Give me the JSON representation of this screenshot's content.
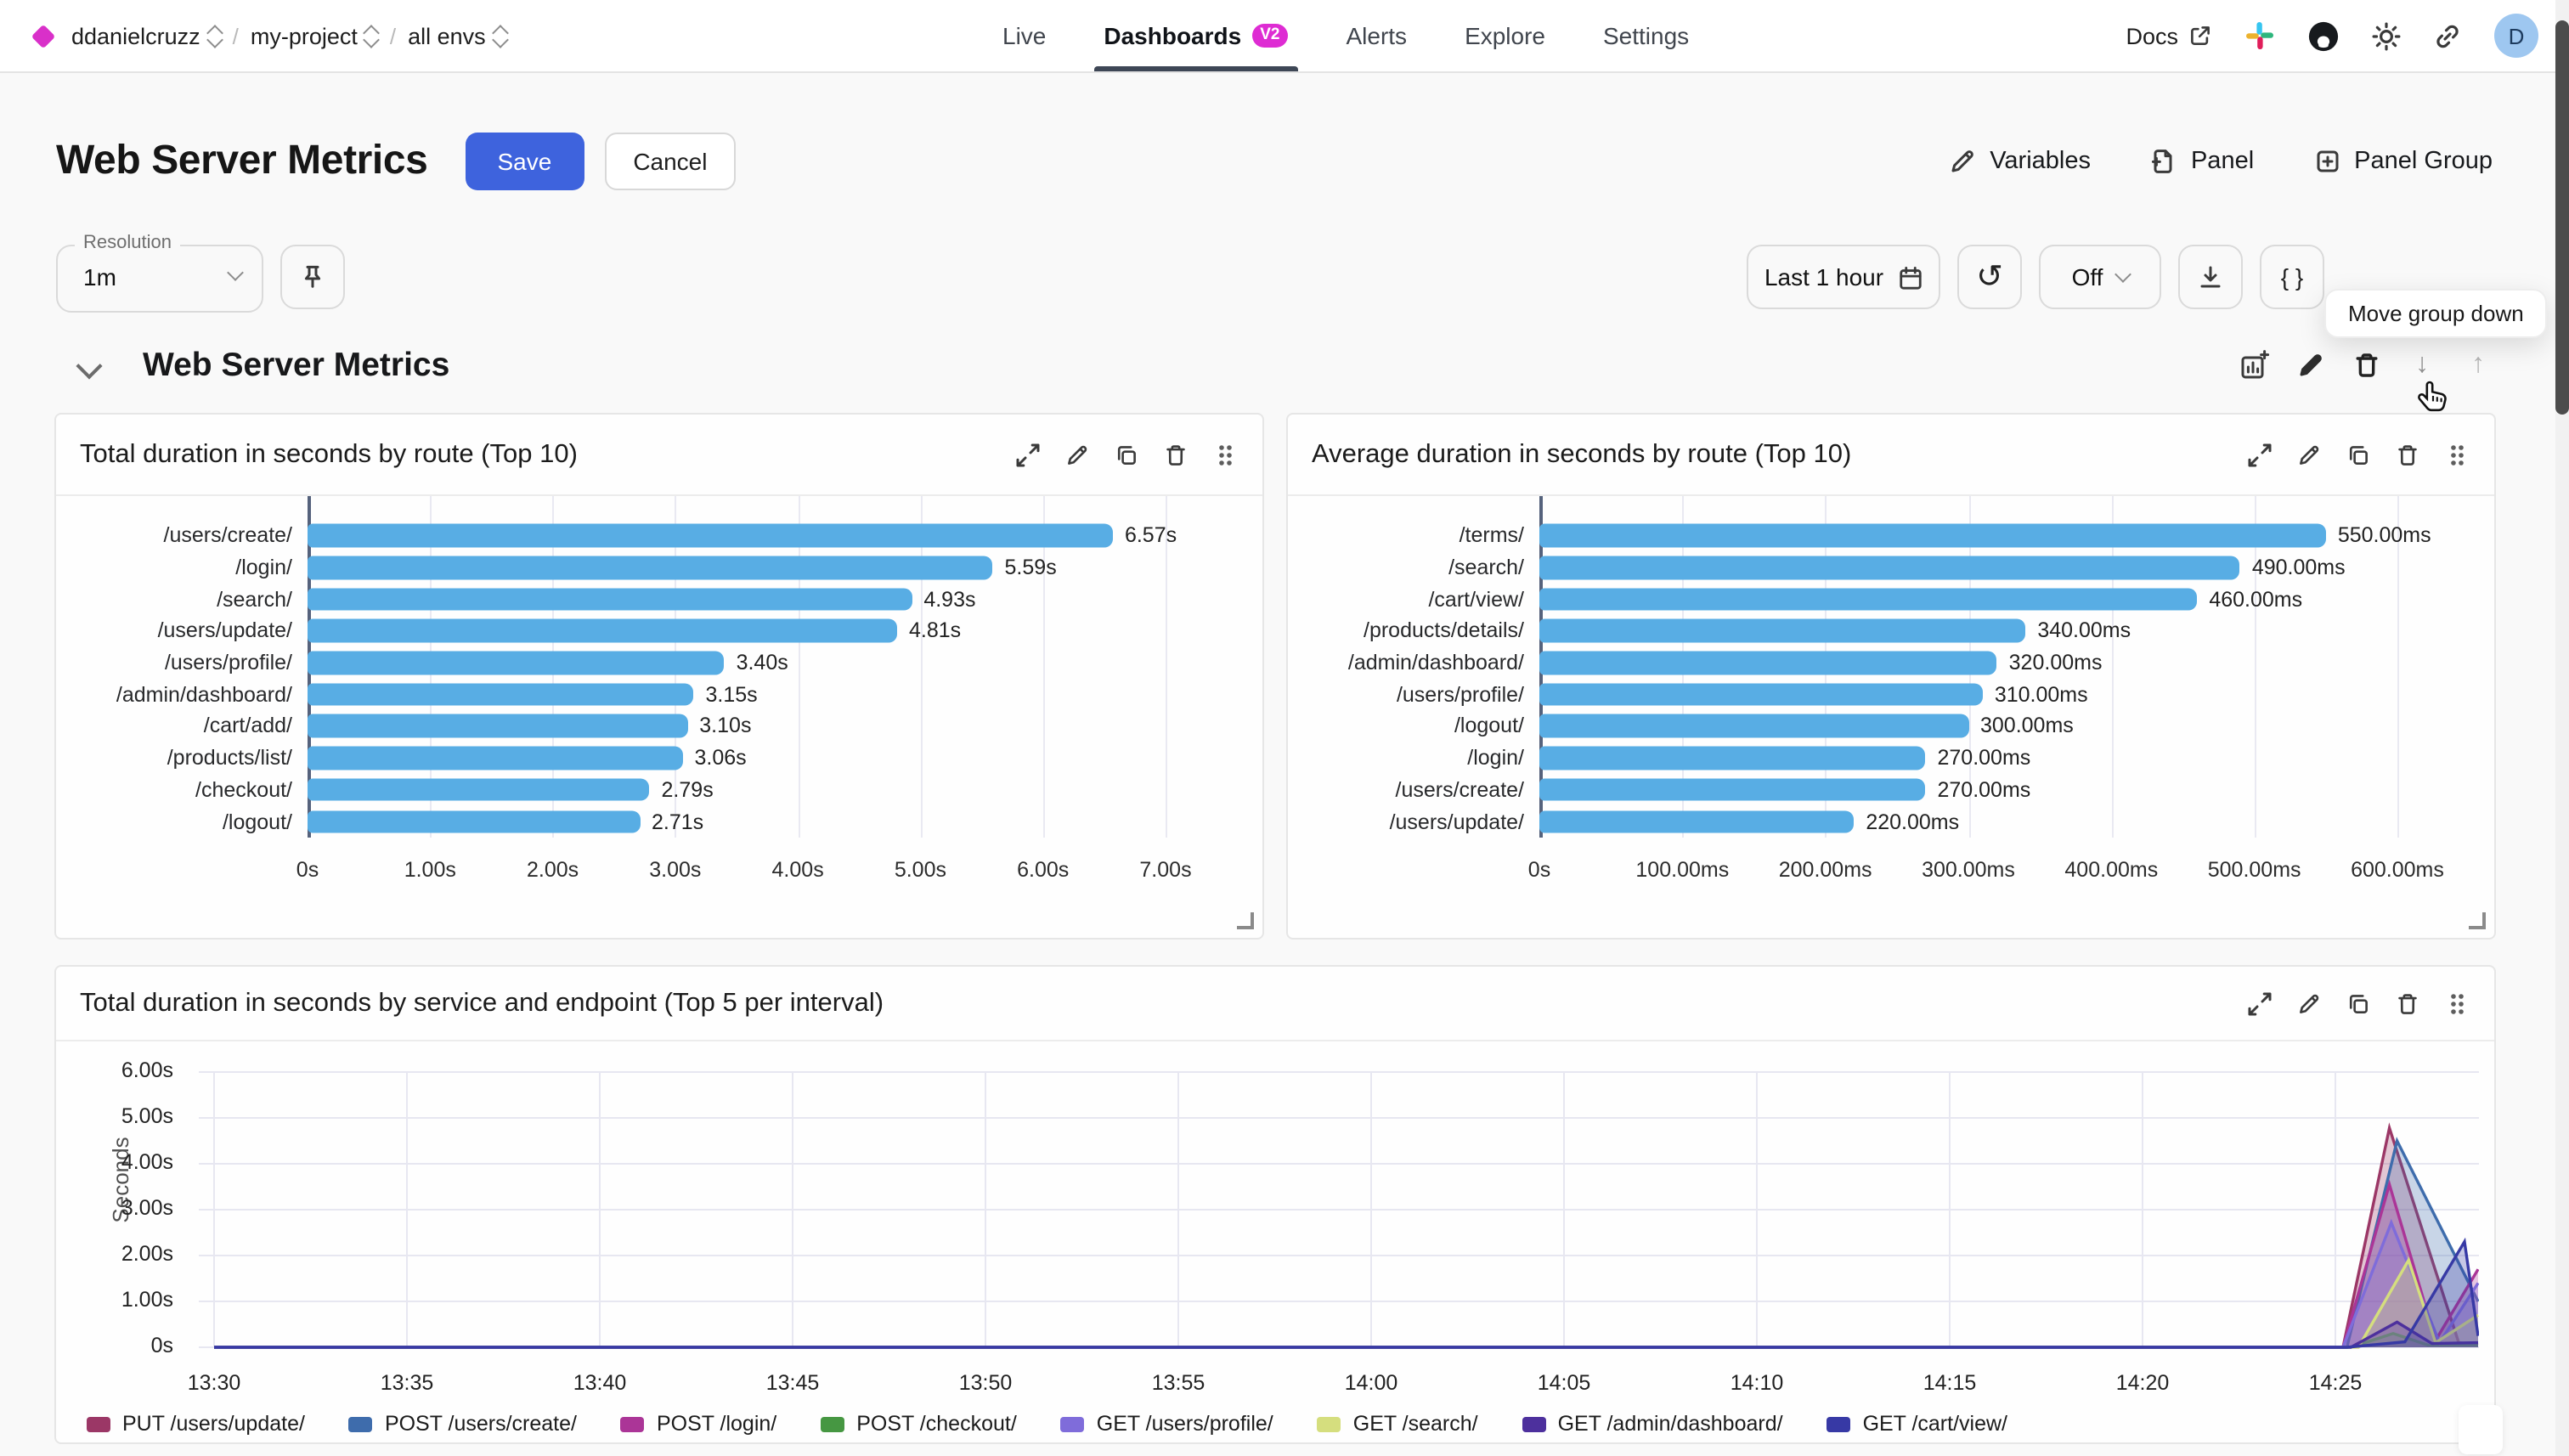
{
  "topnav": {
    "breadcrumb": {
      "org": "ddanielcruzz",
      "project": "my-project",
      "env": "all envs",
      "separator": "/"
    },
    "tabs": [
      {
        "label": "Live"
      },
      {
        "label": "Dashboards",
        "badge": "V2",
        "active": true
      },
      {
        "label": "Alerts"
      },
      {
        "label": "Explore"
      },
      {
        "label": "Settings"
      }
    ],
    "docs_label": "Docs",
    "icons": [
      "external-link-icon",
      "slack-icon",
      "github-icon",
      "sun-icon",
      "link-icon"
    ],
    "avatar_initial": "D"
  },
  "header": {
    "title": "Web Server Metrics",
    "save_label": "Save",
    "cancel_label": "Cancel",
    "variables_label": "Variables",
    "panel_label": "Panel",
    "panel_group_label": "Panel Group"
  },
  "controls": {
    "resolution_label": "Resolution",
    "resolution_value": "1m",
    "time_range_label": "Last 1 hour",
    "refresh_off_label": "Off",
    "braces_label": "{ }",
    "tooltip": "Move group down"
  },
  "group": {
    "title": "Web Server Metrics",
    "down_arrow": "↓",
    "up_arrow": "↑",
    "refresh_glyph": "↺"
  },
  "chart_data": [
    {
      "type": "bar",
      "orientation": "horizontal",
      "title": "Total duration in seconds by route (Top 10)",
      "categories": [
        "/users/create/",
        "/login/",
        "/search/",
        "/users/update/",
        "/users/profile/",
        "/admin/dashboard/",
        "/cart/add/",
        "/products/list/",
        "/checkout/",
        "/logout/"
      ],
      "values": [
        6.57,
        5.59,
        4.93,
        4.81,
        3.4,
        3.15,
        3.1,
        3.06,
        2.79,
        2.71
      ],
      "value_labels": [
        "6.57s",
        "5.59s",
        "4.93s",
        "4.81s",
        "3.40s",
        "3.15s",
        "3.10s",
        "3.06s",
        "2.79s",
        "2.71s"
      ],
      "x_ticks": [
        "0s",
        "1.00s",
        "2.00s",
        "3.00s",
        "4.00s",
        "5.00s",
        "6.00s",
        "7.00s"
      ],
      "xlim": [
        0,
        7
      ],
      "xmax": 7,
      "bar_color": "#58ade4"
    },
    {
      "type": "bar",
      "orientation": "horizontal",
      "title": "Average duration in seconds by route (Top 10)",
      "categories": [
        "/terms/",
        "/search/",
        "/cart/view/",
        "/products/details/",
        "/admin/dashboard/",
        "/users/profile/",
        "/logout/",
        "/login/",
        "/users/create/",
        "/users/update/"
      ],
      "values": [
        550,
        490,
        460,
        340,
        320,
        310,
        300,
        270,
        270,
        220
      ],
      "value_labels": [
        "550.00ms",
        "490.00ms",
        "460.00ms",
        "340.00ms",
        "320.00ms",
        "310.00ms",
        "300.00ms",
        "270.00ms",
        "270.00ms",
        "220.00ms"
      ],
      "x_ticks": [
        "0s",
        "100.00ms",
        "200.00ms",
        "300.00ms",
        "400.00ms",
        "500.00ms",
        "600.00ms"
      ],
      "xlim": [
        0,
        600
      ],
      "xmax": 600,
      "bar_color": "#58ade4"
    },
    {
      "type": "area",
      "title": "Total duration in seconds by service and endpoint (Top 5 per interval)",
      "ylabel": "Seconds",
      "y_ticks": [
        "0s",
        "1.00s",
        "2.00s",
        "3.00s",
        "4.00s",
        "5.00s",
        "6.00s"
      ],
      "ylim": [
        0,
        6
      ],
      "x_ticks": [
        "13:30",
        "13:35",
        "13:40",
        "13:45",
        "13:50",
        "13:55",
        "14:00",
        "14:05",
        "14:10",
        "14:15",
        "14:20",
        "14:25"
      ],
      "x_tick_minutes": [
        0,
        5,
        10,
        15,
        20,
        25,
        30,
        35,
        40,
        45,
        50,
        55
      ],
      "t_end_minutes": 58.7,
      "grid": true,
      "legend_position": "bottom",
      "series": [
        {
          "name": "PUT /users/update/",
          "color": "#9b3766",
          "points": [
            [
              0,
              0
            ],
            [
              55.2,
              0
            ],
            [
              56.4,
              4.78
            ],
            [
              58.2,
              0.1
            ],
            [
              58.7,
              0.05
            ]
          ]
        },
        {
          "name": "POST /users/create/",
          "color": "#3e6cac",
          "points": [
            [
              0,
              0
            ],
            [
              55.3,
              0
            ],
            [
              56.6,
              4.5
            ],
            [
              58.7,
              1.0
            ]
          ]
        },
        {
          "name": "POST /login/",
          "color": "#ab3597",
          "points": [
            [
              0,
              0
            ],
            [
              55.2,
              0
            ],
            [
              56.4,
              3.55
            ],
            [
              57.6,
              0.15
            ],
            [
              58.7,
              1.7
            ]
          ]
        },
        {
          "name": "POST /checkout/",
          "color": "#469742",
          "points": [
            [
              0,
              0
            ],
            [
              55.4,
              0
            ],
            [
              56.5,
              0.3
            ],
            [
              57.4,
              0.05
            ],
            [
              58.7,
              0.05
            ]
          ]
        },
        {
          "name": "GET /users/profile/",
          "color": "#7f6cda",
          "points": [
            [
              0,
              0
            ],
            [
              55.2,
              0
            ],
            [
              56.45,
              2.72
            ],
            [
              57.7,
              0.1
            ],
            [
              58.7,
              1.4
            ]
          ]
        },
        {
          "name": "GET /search/",
          "color": "#d5de7e",
          "points": [
            [
              0,
              0
            ],
            [
              55.6,
              0
            ],
            [
              56.9,
              1.9
            ],
            [
              57.6,
              0.1
            ],
            [
              58.7,
              0.7
            ]
          ]
        },
        {
          "name": "GET /admin/dashboard/",
          "color": "#4d309d",
          "points": [
            [
              0,
              0
            ],
            [
              55.4,
              0
            ],
            [
              56.6,
              0.55
            ],
            [
              57.5,
              0.08
            ],
            [
              58.7,
              0.1
            ]
          ]
        },
        {
          "name": "GET /cart/view/",
          "color": "#3739a5",
          "points": [
            [
              0,
              0
            ],
            [
              55.3,
              0
            ],
            [
              56.8,
              0.12
            ],
            [
              58.35,
              2.3
            ],
            [
              58.7,
              0.25
            ]
          ]
        }
      ]
    }
  ]
}
